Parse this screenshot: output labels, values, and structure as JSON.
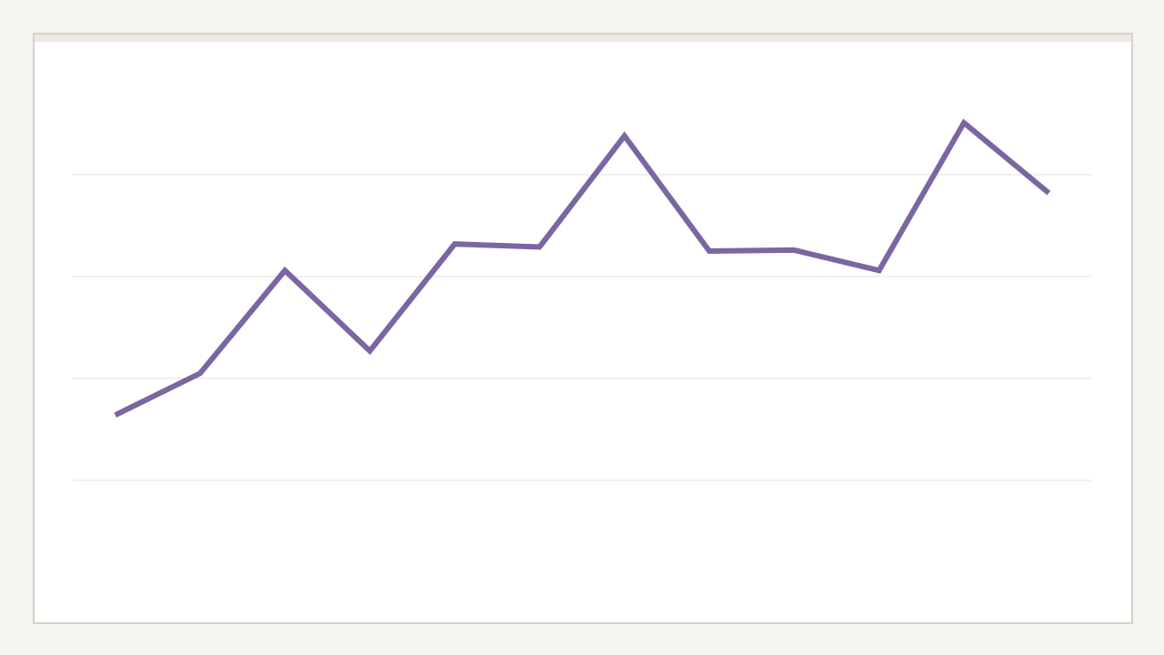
{
  "chart_data": {
    "type": "line",
    "categories": [
      null,
      null,
      null,
      null,
      null,
      null,
      null,
      null,
      null,
      null,
      null,
      null
    ],
    "values": [
      1.64,
      2.05,
      3.06,
      2.27,
      3.32,
      3.29,
      4.38,
      3.25,
      3.26,
      3.06,
      4.51,
      3.82
    ],
    "color": "#7a66a0",
    "ylim": [
      0,
      5
    ],
    "yticks": [
      1,
      2,
      3,
      4
    ],
    "grid": true
  }
}
